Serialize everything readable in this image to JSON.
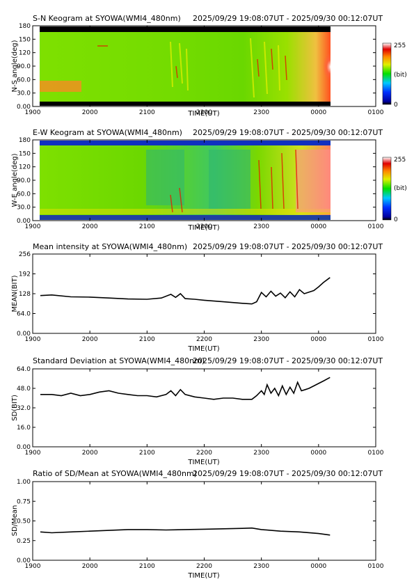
{
  "chart_data": [
    {
      "type": "heatmap",
      "title": "S-N Keogram at SYOWA(WMI4_480nm)",
      "time_range": "2025/09/29 19:08:07UT - 2025/09/30 00:12:07UT",
      "xlabel": "TIME(UT)",
      "ylabel": "N-S angle(deg)",
      "x_ticks": [
        "1900",
        "2000",
        "2100",
        "2200",
        "2300",
        "0000",
        "0100"
      ],
      "y_ticks": [
        "0.00",
        "30.0",
        "60.0",
        "90.0",
        "120",
        "150",
        "180"
      ],
      "ylim": [
        0,
        180
      ],
      "colorbar": {
        "max_label": "255",
        "min_label": "0",
        "unit": "(bit)"
      }
    },
    {
      "type": "heatmap",
      "title": "E-W Keogram at SYOWA(WMI4_480nm)",
      "time_range": "2025/09/29 19:08:07UT - 2025/09/30 00:12:07UT",
      "xlabel": "TIME(UT)",
      "ylabel": "W-E angle(deg)",
      "x_ticks": [
        "1900",
        "2000",
        "2100",
        "2200",
        "2300",
        "0000",
        "0100"
      ],
      "y_ticks": [
        "0.00",
        "30.0",
        "60.0",
        "90.0",
        "120",
        "150",
        "180"
      ],
      "ylim": [
        0,
        180
      ],
      "colorbar": {
        "max_label": "255",
        "min_label": "0",
        "unit": "(bit)"
      }
    },
    {
      "type": "line",
      "title": "Mean intensity at SYOWA(WMI4_480nm)",
      "time_range": "2025/09/29 19:08:07UT - 2025/09/30 00:12:07UT",
      "xlabel": "TIME(UT)",
      "ylabel": "MEAN(BIT)",
      "x_ticks": [
        "1900",
        "2000",
        "2100",
        "2200",
        "2300",
        "0000",
        "0100"
      ],
      "y_ticks": [
        "0.00",
        "64.0",
        "128",
        "192",
        "256"
      ],
      "ylim": [
        0,
        256
      ],
      "series": [
        {
          "x": [
            "19:08",
            "19:20",
            "19:40",
            "20:00",
            "20:20",
            "20:40",
            "21:00",
            "21:15",
            "21:25",
            "21:30",
            "21:35",
            "21:40",
            "21:50",
            "22:00",
            "22:20",
            "22:40",
            "22:50",
            "22:55",
            "23:00",
            "23:05",
            "23:10",
            "23:15",
            "23:20",
            "23:25",
            "23:30",
            "23:35",
            "23:40",
            "23:45",
            "23:50",
            "23:55",
            "00:00",
            "00:05",
            "00:12"
          ],
          "y": [
            122,
            124,
            118,
            117,
            114,
            111,
            110,
            114,
            126,
            116,
            128,
            112,
            110,
            107,
            102,
            97,
            95,
            102,
            132,
            118,
            136,
            120,
            130,
            115,
            134,
            118,
            141,
            128,
            133,
            138,
            150,
            164,
            180
          ]
        }
      ]
    },
    {
      "type": "line",
      "title": "Standard Deviation at SYOWA(WMI4_480nm)",
      "time_range": "2025/09/29 19:08:07UT - 2025/09/30 00:12:07UT",
      "xlabel": "TIME(UT)",
      "ylabel": "SD(BIT)",
      "x_ticks": [
        "1900",
        "2000",
        "2100",
        "2200",
        "2300",
        "0000",
        "0100"
      ],
      "y_ticks": [
        "0.00",
        "16.0",
        "32.0",
        "48.0",
        "64.0"
      ],
      "ylim": [
        0,
        64
      ],
      "series": [
        {
          "x": [
            "19:08",
            "19:20",
            "19:30",
            "19:40",
            "19:50",
            "20:00",
            "20:10",
            "20:20",
            "20:30",
            "20:40",
            "20:50",
            "21:00",
            "21:10",
            "21:20",
            "21:25",
            "21:30",
            "21:35",
            "21:40",
            "21:50",
            "22:00",
            "22:10",
            "22:20",
            "22:30",
            "22:40",
            "22:50",
            "22:55",
            "23:00",
            "23:03",
            "23:06",
            "23:10",
            "23:14",
            "23:18",
            "23:22",
            "23:26",
            "23:30",
            "23:34",
            "23:38",
            "23:42",
            "23:46",
            "23:50",
            "23:55",
            "00:00",
            "00:05",
            "00:12"
          ],
          "y": [
            43,
            43,
            42,
            44,
            42,
            43,
            45,
            46,
            44,
            43,
            42,
            42,
            41,
            43,
            46,
            42,
            47,
            43,
            41,
            40,
            39,
            40,
            40,
            39,
            39,
            42,
            46,
            43,
            51,
            44,
            48,
            42,
            50,
            43,
            49,
            44,
            53,
            46,
            47,
            48,
            50,
            52,
            54,
            57
          ]
        }
      ]
    },
    {
      "type": "line",
      "title": "Ratio of SD/Mean at SYOWA(WMI4_480nm)",
      "time_range": "2025/09/29 19:08:07UT - 2025/09/30 00:12:07UT",
      "xlabel": "TIME(UT)",
      "ylabel": "SD/Mean",
      "x_ticks": [
        "1900",
        "2000",
        "2100",
        "2200",
        "2300",
        "0000",
        "0100"
      ],
      "y_ticks": [
        "0.00",
        "0.25",
        "0.50",
        "0.75",
        "1.00"
      ],
      "ylim": [
        0,
        1
      ],
      "series": [
        {
          "x": [
            "19:08",
            "19:20",
            "19:40",
            "20:00",
            "20:20",
            "20:40",
            "21:00",
            "21:20",
            "21:40",
            "22:00",
            "22:20",
            "22:40",
            "22:50",
            "23:00",
            "23:20",
            "23:40",
            "00:00",
            "00:12"
          ],
          "y": [
            0.36,
            0.35,
            0.36,
            0.37,
            0.38,
            0.39,
            0.39,
            0.385,
            0.39,
            0.395,
            0.4,
            0.405,
            0.41,
            0.39,
            0.37,
            0.36,
            0.34,
            0.32
          ]
        }
      ]
    }
  ]
}
